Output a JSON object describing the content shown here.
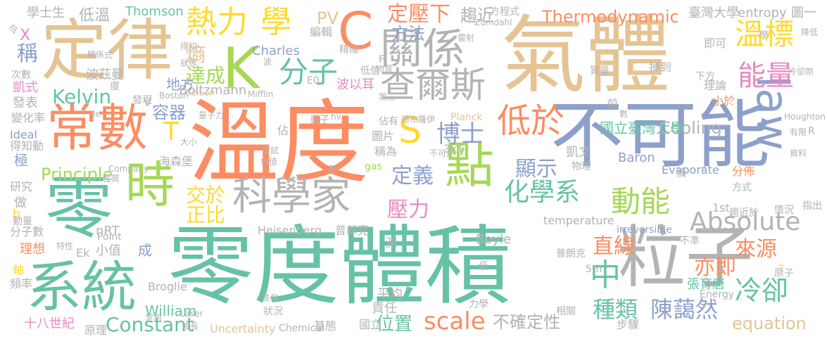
{
  "palette": {
    "green": "#66c2a5",
    "orange": "#fc8d62",
    "blue": "#8da0cb",
    "pink": "#e78ac3",
    "lime": "#a6d854",
    "yellow": "#ffd92f",
    "tan": "#e5c494",
    "gray": "#b3b3b3"
  },
  "words": [
    {
      "text": "零度體積",
      "color": "#66c2a5"
    },
    {
      "text": "溫度",
      "color": "#fc8d62"
    },
    {
      "text": "氣體",
      "color": "#e5c494"
    },
    {
      "text": "不可能",
      "color": "#8da0cb"
    },
    {
      "text": "定律",
      "color": "#e5c494"
    },
    {
      "text": "零",
      "color": "#66c2a5"
    },
    {
      "text": "粒子",
      "color": "#b3b3b3"
    },
    {
      "text": "常數",
      "color": "#fc8d62"
    },
    {
      "text": "系統",
      "color": "#66c2a5"
    },
    {
      "text": "時",
      "color": "#a6d854"
    },
    {
      "text": "點",
      "color": "#a6d854"
    },
    {
      "text": "K",
      "color": "#a6d854"
    },
    {
      "text": "C",
      "color": "#fc8d62"
    },
    {
      "text": "S",
      "color": "#ffd92f"
    },
    {
      "text": "關係",
      "color": "#b3b3b3"
    },
    {
      "text": "科學家",
      "color": "#b3b3b3"
    },
    {
      "text": "查爾斯",
      "color": "#b3b3b3"
    },
    {
      "text": "law",
      "color": "#8da0cb"
    },
    {
      "text": "熱力",
      "color": "#ffd92f"
    },
    {
      "text": "學",
      "color": "#ffd92f"
    },
    {
      "text": "分子",
      "color": "#66c2a5"
    },
    {
      "text": "溫標",
      "color": "#ffd92f"
    },
    {
      "text": "能量",
      "color": "#e78ac3"
    },
    {
      "text": "低於",
      "color": "#fc8d62"
    },
    {
      "text": "博士",
      "color": "#8da0cb"
    },
    {
      "text": "Absolute",
      "color": "#b3b3b3"
    },
    {
      "text": "中",
      "color": "#66c2a5"
    },
    {
      "text": "動能",
      "color": "#a6d854"
    },
    {
      "text": "化學系",
      "color": "#66c2a5"
    },
    {
      "text": "冷卻",
      "color": "#66c2a5"
    },
    {
      "text": "定壓下",
      "color": "#fc8d62"
    },
    {
      "text": "T",
      "color": "#ffd92f"
    },
    {
      "text": "交於",
      "color": "#ffd92f"
    },
    {
      "text": "正比",
      "color": "#ffd92f"
    },
    {
      "text": "達成",
      "color": "#a6d854"
    },
    {
      "text": "熵",
      "color": "#e5c494"
    },
    {
      "text": "Kelvin",
      "color": "#66c2a5"
    },
    {
      "text": "壓力",
      "color": "#e78ac3"
    },
    {
      "text": "顯示",
      "color": "#8da0cb"
    },
    {
      "text": "定義",
      "color": "#8da0cb"
    },
    {
      "text": "scale",
      "color": "#fc8d62"
    },
    {
      "text": "種類",
      "color": "#66c2a5"
    },
    {
      "text": "陳藹然",
      "color": "#8da0cb"
    },
    {
      "text": "直線",
      "color": "#fc8d62"
    },
    {
      "text": "來源",
      "color": "#fc8d62"
    },
    {
      "text": "亦即",
      "color": "#fc8d62"
    },
    {
      "text": "Thermodynamic",
      "color": "#fc8d62"
    },
    {
      "text": "方法",
      "color": "#8da0cb"
    },
    {
      "text": "趨近",
      "color": "#b3b3b3"
    },
    {
      "text": "Constant",
      "color": "#66c2a5"
    },
    {
      "text": "Principle",
      "color": "#a6d854"
    },
    {
      "text": "equation",
      "color": "#e5c494"
    },
    {
      "text": "Cooling",
      "color": "#b3b3b3"
    },
    {
      "text": "國立臺灣大學",
      "color": "#66c2a5"
    },
    {
      "text": "不確定性",
      "color": "#b3b3b3"
    },
    {
      "text": "位置",
      "color": "#66c2a5"
    },
    {
      "text": "容器",
      "color": "#8da0cb"
    },
    {
      "text": "PV",
      "color": "#e5c494"
    },
    {
      "text": "低溫",
      "color": "#b3b3b3"
    },
    {
      "text": "Thomson",
      "color": "#66c2a5"
    },
    {
      "text": "學士生",
      "color": "#b3b3b3"
    },
    {
      "text": "稱",
      "color": "#8da0cb"
    },
    {
      "text": "X",
      "color": "#e78ac3"
    },
    {
      "text": "臺灣大學",
      "color": "#b3b3b3"
    },
    {
      "text": "entropy",
      "color": "#b3b3b3"
    },
    {
      "text": "圖一",
      "color": "#b3b3b3"
    },
    {
      "text": "Charles",
      "color": "#8da0cb"
    },
    {
      "text": "Boltzmann",
      "color": "#b3b3b3"
    },
    {
      "text": "波以耳",
      "color": "#e78ac3"
    },
    {
      "text": "凱文",
      "color": "#b3b3b3"
    },
    {
      "text": "Baron",
      "color": "#8da0cb"
    },
    {
      "text": "Evaporate",
      "color": "#8da0cb"
    },
    {
      "text": "Boyle",
      "color": "#b3b3b3"
    },
    {
      "text": "temperature",
      "color": "#b3b3b3"
    },
    {
      "text": "Heisenberg",
      "color": "#b3b3b3"
    },
    {
      "text": "普郎克",
      "color": "#b3b3b3"
    },
    {
      "text": "William",
      "color": "#66c2a5"
    },
    {
      "text": "張育唐",
      "color": "#66c2a5"
    },
    {
      "text": "十八世紀",
      "color": "#e78ac3"
    },
    {
      "text": "平均",
      "color": "#b3b3b3"
    },
    {
      "text": "責任",
      "color": "#b3b3b3"
    },
    {
      "text": "國立",
      "color": "#b3b3b3"
    },
    {
      "text": "地方",
      "color": "#8da0cb"
    },
    {
      "text": "波茲曼",
      "color": "#b3b3b3"
    },
    {
      "text": "凱式",
      "color": "#e78ac3"
    },
    {
      "text": "發表",
      "color": "#b3b3b3"
    },
    {
      "text": "變化率",
      "color": "#b3b3b3"
    },
    {
      "text": "Ideal",
      "color": "#8da0cb"
    },
    {
      "text": "得知動",
      "color": "#b3b3b3"
    },
    {
      "text": "極",
      "color": "#8da0cb"
    },
    {
      "text": "研究",
      "color": "#b3b3b3"
    },
    {
      "text": "h",
      "color": "#ffd92f"
    },
    {
      "text": "做",
      "color": "#b3b3b3"
    },
    {
      "text": "動量",
      "color": "#b3b3b3"
    },
    {
      "text": "分子數",
      "color": "#b3b3b3"
    },
    {
      "text": "理想",
      "color": "#fc8d62"
    },
    {
      "text": "軸",
      "color": "#ffd92f"
    },
    {
      "text": "頻率",
      "color": "#b3b3b3"
    },
    {
      "text": "nRT",
      "color": "#b3b3b3"
    },
    {
      "text": "Point",
      "color": "#b3b3b3"
    },
    {
      "text": "小值",
      "color": "#b3b3b3"
    },
    {
      "text": "成",
      "color": "#8da0cb"
    },
    {
      "text": "Ek",
      "color": "#b3b3b3"
    },
    {
      "text": "Broglie",
      "color": "#b3b3b3"
    },
    {
      "text": "原理",
      "color": "#b3b3b3"
    },
    {
      "text": "Uncertainty",
      "color": "#e5c494"
    },
    {
      "text": "Chemical",
      "color": "#b3b3b3"
    },
    {
      "text": "基態",
      "color": "#b3b3b3"
    },
    {
      "text": "步驟",
      "color": "#b3b3b3"
    },
    {
      "text": "方程式",
      "color": "#b3b3b3"
    },
    {
      "text": "編輯",
      "color": "#b3b3b3"
    },
    {
      "text": "精確",
      "color": "#b3b3b3"
    },
    {
      "text": "掉到",
      "color": "#b3b3b3"
    },
    {
      "text": "即可",
      "color": "#b3b3b3"
    },
    {
      "text": "小於",
      "color": "#fc8d62"
    },
    {
      "text": "理論",
      "color": "#b3b3b3"
    },
    {
      "text": "前",
      "color": "#b3b3b3"
    },
    {
      "text": "下方",
      "color": "#b3b3b3"
    },
    {
      "text": "質量",
      "color": "#b3b3b3"
    },
    {
      "text": "新",
      "color": "#b3b3b3"
    },
    {
      "text": "分佈",
      "color": "#fc8d62"
    },
    {
      "text": "方式",
      "color": "#b3b3b3"
    },
    {
      "text": "1st",
      "color": "#b3b3b3"
    },
    {
      "text": "趨近於",
      "color": "#b3b3b3"
    },
    {
      "text": "情況",
      "color": "#b3b3b3"
    },
    {
      "text": "指出",
      "color": "#b3b3b3"
    },
    {
      "text": "irreversible",
      "color": "#8da0cb"
    },
    {
      "text": "不準",
      "color": "#b3b3b3"
    },
    {
      "text": "普朗克",
      "color": "#b3b3b3"
    },
    {
      "text": "5th",
      "color": "#b3b3b3"
    },
    {
      "text": "Energy",
      "color": "#b3b3b3"
    },
    {
      "text": "原子",
      "color": "#b3b3b3"
    },
    {
      "text": "相關",
      "color": "#b3b3b3"
    },
    {
      "text": "Planck",
      "color": "#e5c494"
    },
    {
      "text": "3kT",
      "color": "#b3b3b3"
    },
    {
      "text": "gas",
      "color": "#a6d854"
    },
    {
      "text": "物理",
      "color": "#b3b3b3"
    },
    {
      "text": "圖片",
      "color": "#b3b3b3"
    },
    {
      "text": "稱為",
      "color": "#b3b3b3"
    },
    {
      "text": "P",
      "color": "#b3b3b3"
    },
    {
      "text": "佔有",
      "color": "#b3b3b3"
    },
    {
      "text": "德布羅伊",
      "color": "#b3b3b3"
    },
    {
      "text": "第三",
      "color": "#b3b3b3"
    },
    {
      "text": "量子",
      "color": "#b3b3b3"
    },
    {
      "text": "E0",
      "color": "#b3b3b3"
    },
    {
      "text": "低值",
      "color": "#b3b3b3"
    },
    {
      "text": "物質",
      "color": "#b3b3b3"
    },
    {
      "text": "Mifflin",
      "color": "#b3b3b3"
    },
    {
      "text": "edition",
      "color": "#e5c494"
    },
    {
      "text": "Boston",
      "color": "#b3b3b3"
    },
    {
      "text": "量子力",
      "color": "#b3b3b3"
    },
    {
      "text": "Zumdahl",
      "color": "#b3b3b3"
    },
    {
      "text": "Houghton",
      "color": "#b3b3b3"
    },
    {
      "text": "降低",
      "color": "#b3b3b3"
    },
    {
      "text": "冷卻劑",
      "color": "#b3b3b3"
    },
    {
      "text": "有限",
      "color": "#b3b3b3"
    },
    {
      "text": "資料",
      "color": "#b3b3b3"
    },
    {
      "text": "Company",
      "color": "#b3b3b3"
    },
    {
      "text": "海森堡",
      "color": "#b3b3b3"
    },
    {
      "text": "大小",
      "color": "#b3b3b3"
    },
    {
      "text": "佔",
      "color": "#b3b3b3"
    },
    {
      "text": "嘗試",
      "color": "#b3b3b3"
    },
    {
      "text": "負值",
      "color": "#b3b3b3"
    },
    {
      "text": "不可逆",
      "color": "#b3b3b3"
    },
    {
      "text": "hv",
      "color": "#b3b3b3"
    },
    {
      "text": "Laser",
      "color": "#b3b3b3"
    },
    {
      "text": "波長",
      "color": "#b3b3b3"
    },
    {
      "text": "常用",
      "color": "#b3b3b3"
    },
    {
      "text": "狀況",
      "color": "#b3b3b3"
    },
    {
      "text": "蒸發",
      "color": "#b3b3b3"
    },
    {
      "text": "力學",
      "color": "#b3b3b3"
    },
    {
      "text": "測",
      "color": "#b3b3b3"
    },
    {
      "text": "低",
      "color": "#b3b3b3"
    },
    {
      "text": "令",
      "color": "#b3b3b3"
    },
    {
      "text": "關係式",
      "color": "#b3b3b3"
    },
    {
      "text": "次數",
      "color": "#b3b3b3"
    },
    {
      "text": "度",
      "color": "#b3b3b3"
    },
    {
      "text": "發現",
      "color": "#b3b3b3"
    },
    {
      "text": "V",
      "color": "#b3b3b3"
    },
    {
      "text": "de",
      "color": "#b3b3b3"
    },
    {
      "text": "特性",
      "color": "#b3b3b3"
    },
    {
      "text": "性質",
      "color": "#b3b3b3"
    },
    {
      "text": "J",
      "color": "#b3b3b3"
    },
    {
      "text": "得知",
      "color": "#b3b3b3"
    },
    {
      "text": "狀態",
      "color": "#b3b3b3"
    },
    {
      "text": "雷射",
      "color": "#b3b3b3"
    },
    {
      "text": "波",
      "color": "#b3b3b3"
    },
    {
      "text": "F",
      "color": "#b3b3b3"
    },
    {
      "text": "R",
      "color": "#b3b3b3"
    },
    {
      "text": "n",
      "color": "#b3b3b3"
    },
    {
      "text": "T",
      "color": "#ffd92f"
    },
    {
      "text": "數",
      "color": "#b3b3b3"
    },
    {
      "text": "學",
      "color": "#b3b3b3"
    }
  ]
}
